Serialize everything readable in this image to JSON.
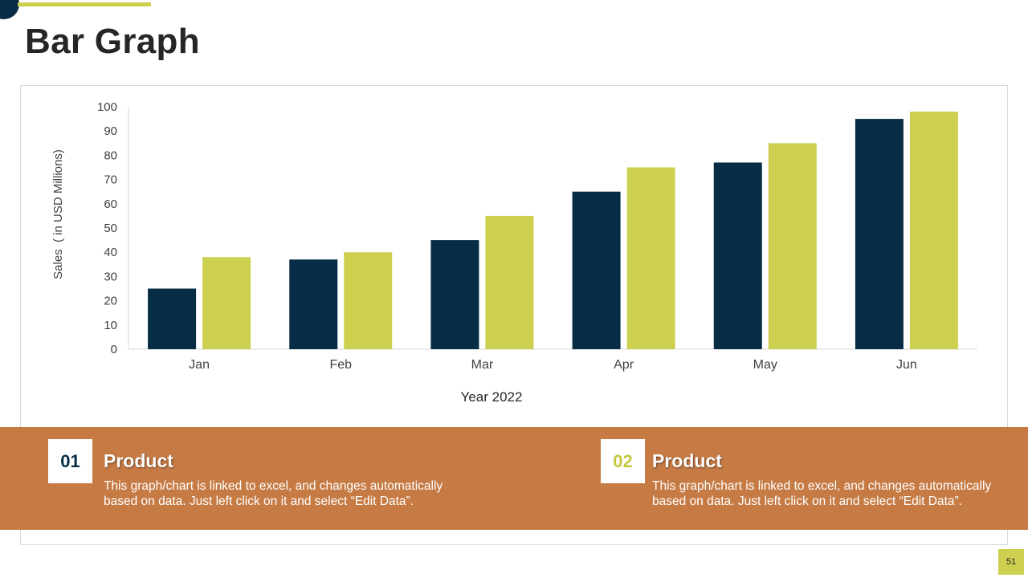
{
  "slide": {
    "title": "Bar Graph",
    "page_number": "51"
  },
  "colors": {
    "navy": "#062d45",
    "lime": "#cdd04f",
    "band": "#c67b45"
  },
  "chart_data": {
    "type": "bar",
    "categories": [
      "Jan",
      "Feb",
      "Mar",
      "Apr",
      "May",
      "Jun"
    ],
    "series": [
      {
        "name": "Product 01",
        "color": "#062d45",
        "values": [
          25,
          37,
          45,
          65,
          77,
          95
        ]
      },
      {
        "name": "Product 02",
        "color": "#cdd04f",
        "values": [
          38,
          40,
          55,
          75,
          85,
          98
        ]
      }
    ],
    "title": "",
    "xlabel": "Year 2022",
    "ylabel": "Sales  ( in USD Millions)",
    "ylim": [
      0,
      100
    ],
    "yticks": [
      0,
      10,
      20,
      30,
      40,
      50,
      60,
      70,
      80,
      90,
      100
    ],
    "grid": false
  },
  "products": [
    {
      "number": "01",
      "title": "Product",
      "description": "This graph/chart is linked to excel, and changes automatically based on data. Just left click on it and select “Edit Data”."
    },
    {
      "number": "02",
      "title": "Product",
      "description": "This graph/chart is linked to excel, and changes automatically based on data. Just left click on it and select “Edit Data”."
    }
  ]
}
